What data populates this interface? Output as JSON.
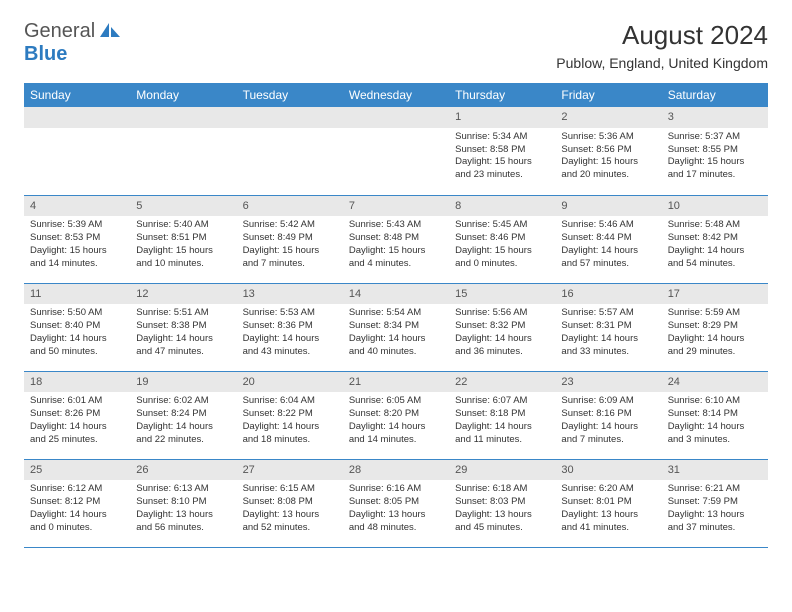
{
  "logo": {
    "line1": "General",
    "line2": "Blue"
  },
  "title": "August 2024",
  "location": "Publow, England, United Kingdom",
  "colors": {
    "header_bg": "#3a87c8",
    "header_text": "#ffffff",
    "daynum_bg": "#e8e8e8",
    "row_border": "#3a87c8",
    "logo_blue": "#2d7bc0",
    "logo_gray": "#555555",
    "body_text": "#333333",
    "background": "#ffffff"
  },
  "typography": {
    "title_fontsize": 26,
    "location_fontsize": 14,
    "weekday_fontsize": 12,
    "cell_fontsize": 9.5,
    "daynum_fontsize": 11
  },
  "weekdays": [
    "Sunday",
    "Monday",
    "Tuesday",
    "Wednesday",
    "Thursday",
    "Friday",
    "Saturday"
  ],
  "layout": {
    "columns": 7,
    "rows": 5,
    "first_weekday_index": 4
  },
  "days": [
    {
      "n": "1",
      "sunrise": "5:34 AM",
      "sunset": "8:58 PM",
      "dl1": "Daylight: 15 hours",
      "dl2": "and 23 minutes."
    },
    {
      "n": "2",
      "sunrise": "5:36 AM",
      "sunset": "8:56 PM",
      "dl1": "Daylight: 15 hours",
      "dl2": "and 20 minutes."
    },
    {
      "n": "3",
      "sunrise": "5:37 AM",
      "sunset": "8:55 PM",
      "dl1": "Daylight: 15 hours",
      "dl2": "and 17 minutes."
    },
    {
      "n": "4",
      "sunrise": "5:39 AM",
      "sunset": "8:53 PM",
      "dl1": "Daylight: 15 hours",
      "dl2": "and 14 minutes."
    },
    {
      "n": "5",
      "sunrise": "5:40 AM",
      "sunset": "8:51 PM",
      "dl1": "Daylight: 15 hours",
      "dl2": "and 10 minutes."
    },
    {
      "n": "6",
      "sunrise": "5:42 AM",
      "sunset": "8:49 PM",
      "dl1": "Daylight: 15 hours",
      "dl2": "and 7 minutes."
    },
    {
      "n": "7",
      "sunrise": "5:43 AM",
      "sunset": "8:48 PM",
      "dl1": "Daylight: 15 hours",
      "dl2": "and 4 minutes."
    },
    {
      "n": "8",
      "sunrise": "5:45 AM",
      "sunset": "8:46 PM",
      "dl1": "Daylight: 15 hours",
      "dl2": "and 0 minutes."
    },
    {
      "n": "9",
      "sunrise": "5:46 AM",
      "sunset": "8:44 PM",
      "dl1": "Daylight: 14 hours",
      "dl2": "and 57 minutes."
    },
    {
      "n": "10",
      "sunrise": "5:48 AM",
      "sunset": "8:42 PM",
      "dl1": "Daylight: 14 hours",
      "dl2": "and 54 minutes."
    },
    {
      "n": "11",
      "sunrise": "5:50 AM",
      "sunset": "8:40 PM",
      "dl1": "Daylight: 14 hours",
      "dl2": "and 50 minutes."
    },
    {
      "n": "12",
      "sunrise": "5:51 AM",
      "sunset": "8:38 PM",
      "dl1": "Daylight: 14 hours",
      "dl2": "and 47 minutes."
    },
    {
      "n": "13",
      "sunrise": "5:53 AM",
      "sunset": "8:36 PM",
      "dl1": "Daylight: 14 hours",
      "dl2": "and 43 minutes."
    },
    {
      "n": "14",
      "sunrise": "5:54 AM",
      "sunset": "8:34 PM",
      "dl1": "Daylight: 14 hours",
      "dl2": "and 40 minutes."
    },
    {
      "n": "15",
      "sunrise": "5:56 AM",
      "sunset": "8:32 PM",
      "dl1": "Daylight: 14 hours",
      "dl2": "and 36 minutes."
    },
    {
      "n": "16",
      "sunrise": "5:57 AM",
      "sunset": "8:31 PM",
      "dl1": "Daylight: 14 hours",
      "dl2": "and 33 minutes."
    },
    {
      "n": "17",
      "sunrise": "5:59 AM",
      "sunset": "8:29 PM",
      "dl1": "Daylight: 14 hours",
      "dl2": "and 29 minutes."
    },
    {
      "n": "18",
      "sunrise": "6:01 AM",
      "sunset": "8:26 PM",
      "dl1": "Daylight: 14 hours",
      "dl2": "and 25 minutes."
    },
    {
      "n": "19",
      "sunrise": "6:02 AM",
      "sunset": "8:24 PM",
      "dl1": "Daylight: 14 hours",
      "dl2": "and 22 minutes."
    },
    {
      "n": "20",
      "sunrise": "6:04 AM",
      "sunset": "8:22 PM",
      "dl1": "Daylight: 14 hours",
      "dl2": "and 18 minutes."
    },
    {
      "n": "21",
      "sunrise": "6:05 AM",
      "sunset": "8:20 PM",
      "dl1": "Daylight: 14 hours",
      "dl2": "and 14 minutes."
    },
    {
      "n": "22",
      "sunrise": "6:07 AM",
      "sunset": "8:18 PM",
      "dl1": "Daylight: 14 hours",
      "dl2": "and 11 minutes."
    },
    {
      "n": "23",
      "sunrise": "6:09 AM",
      "sunset": "8:16 PM",
      "dl1": "Daylight: 14 hours",
      "dl2": "and 7 minutes."
    },
    {
      "n": "24",
      "sunrise": "6:10 AM",
      "sunset": "8:14 PM",
      "dl1": "Daylight: 14 hours",
      "dl2": "and 3 minutes."
    },
    {
      "n": "25",
      "sunrise": "6:12 AM",
      "sunset": "8:12 PM",
      "dl1": "Daylight: 14 hours",
      "dl2": "and 0 minutes."
    },
    {
      "n": "26",
      "sunrise": "6:13 AM",
      "sunset": "8:10 PM",
      "dl1": "Daylight: 13 hours",
      "dl2": "and 56 minutes."
    },
    {
      "n": "27",
      "sunrise": "6:15 AM",
      "sunset": "8:08 PM",
      "dl1": "Daylight: 13 hours",
      "dl2": "and 52 minutes."
    },
    {
      "n": "28",
      "sunrise": "6:16 AM",
      "sunset": "8:05 PM",
      "dl1": "Daylight: 13 hours",
      "dl2": "and 48 minutes."
    },
    {
      "n": "29",
      "sunrise": "6:18 AM",
      "sunset": "8:03 PM",
      "dl1": "Daylight: 13 hours",
      "dl2": "and 45 minutes."
    },
    {
      "n": "30",
      "sunrise": "6:20 AM",
      "sunset": "8:01 PM",
      "dl1": "Daylight: 13 hours",
      "dl2": "and 41 minutes."
    },
    {
      "n": "31",
      "sunrise": "6:21 AM",
      "sunset": "7:59 PM",
      "dl1": "Daylight: 13 hours",
      "dl2": "and 37 minutes."
    }
  ]
}
